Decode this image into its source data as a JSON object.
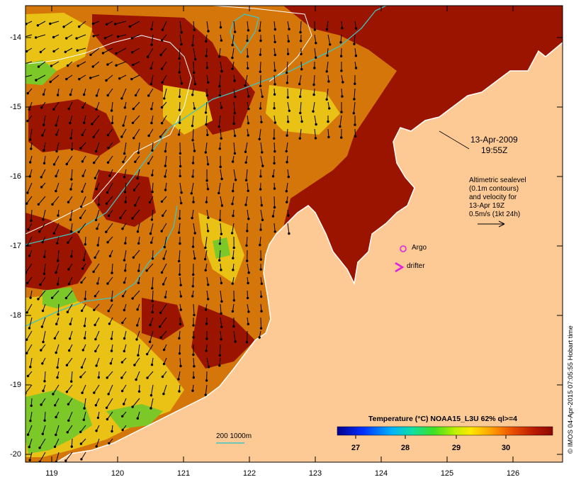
{
  "map": {
    "stamp_date": "13-Apr-2009",
    "stamp_time": "19:55Z",
    "legend_lines": [
      "Altimetric sealevel",
      "(0.1m contours)",
      "and velocity for",
      "13-Apr 19Z",
      "0.5m/s (1kt 24h)"
    ],
    "argo_label": "Argo",
    "drifter_label": "drifter",
    "bathy_label": "200  1000m",
    "colorbar_title": "Temperature (°C) NOAA15_L3U 62% ql>=4",
    "colorbar_ticks": [
      "27",
      "28",
      "29",
      "30"
    ],
    "credit": "© IMOS 04-Apr-2015 07:05:55 Hobart time",
    "lat_labels": [
      "-14",
      "-15",
      "-16",
      "-17",
      "-18",
      "-19",
      "-20"
    ],
    "lon_labels": [
      "119",
      "120",
      "121",
      "122",
      "123",
      "124",
      "125",
      "126"
    ],
    "colors": {
      "land": "#fdca96",
      "sst_warm": "#9b1400",
      "sst_mid": "#d4760a",
      "sst_cool": "#e9c215",
      "bathy_200": "#ffffff",
      "bathy_1000": "#3fc5c0",
      "argo": "#e020e0"
    }
  }
}
